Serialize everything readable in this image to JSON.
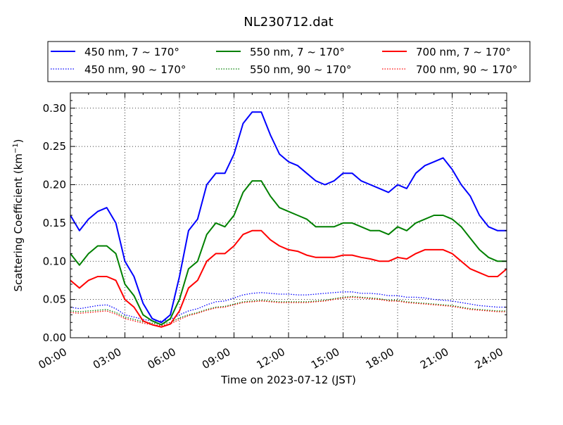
{
  "chart_data": {
    "type": "line",
    "title": "NL230712.dat",
    "xlabel": "Time on 2023-07-12 (JST)",
    "ylabel_main": "Scattering Coefficient (km",
    "ylabel_sup": "−1",
    "ylabel_close": ")",
    "xlim": [
      "00:00",
      "24:00"
    ],
    "ylim": [
      0.0,
      0.32
    ],
    "x_ticks": [
      "00:00",
      "03:00",
      "06:00",
      "09:00",
      "12:00",
      "15:00",
      "18:00",
      "21:00",
      "24:00"
    ],
    "y_ticks": [
      "0.00",
      "0.05",
      "0.10",
      "0.15",
      "0.20",
      "0.25",
      "0.30"
    ],
    "grid": true,
    "legend_position": "top, above plot (3 columns)",
    "x_hours": [
      0,
      0.5,
      1,
      1.5,
      2,
      2.5,
      3,
      3.5,
      4,
      4.5,
      5,
      5.5,
      6,
      6.5,
      7,
      7.5,
      8,
      8.5,
      9,
      9.5,
      10,
      10.5,
      11,
      11.5,
      12,
      12.5,
      13,
      13.5,
      14,
      14.5,
      15,
      15.5,
      16,
      16.5,
      17,
      17.5,
      18,
      18.5,
      19,
      19.5,
      20,
      20.5,
      21,
      21.5,
      22,
      22.5,
      23,
      23.5,
      24
    ],
    "series": [
      {
        "name": "450 nm, 7 ~ 170°",
        "color": "#0000ff",
        "style": "solid",
        "values": [
          0.16,
          0.14,
          0.155,
          0.165,
          0.17,
          0.15,
          0.1,
          0.08,
          0.045,
          0.025,
          0.02,
          0.03,
          0.08,
          0.14,
          0.155,
          0.2,
          0.215,
          0.215,
          0.24,
          0.28,
          0.295,
          0.295,
          0.265,
          0.24,
          0.23,
          0.225,
          0.215,
          0.205,
          0.2,
          0.205,
          0.215,
          0.215,
          0.205,
          0.2,
          0.195,
          0.19,
          0.2,
          0.195,
          0.215,
          0.225,
          0.23,
          0.235,
          0.22,
          0.2,
          0.185,
          0.16,
          0.145,
          0.14,
          0.14
        ]
      },
      {
        "name": "550 nm, 7 ~ 170°",
        "color": "#008000",
        "style": "solid",
        "values": [
          0.11,
          0.095,
          0.11,
          0.12,
          0.12,
          0.11,
          0.07,
          0.055,
          0.03,
          0.022,
          0.017,
          0.025,
          0.05,
          0.09,
          0.1,
          0.135,
          0.15,
          0.145,
          0.16,
          0.19,
          0.205,
          0.205,
          0.185,
          0.17,
          0.165,
          0.16,
          0.155,
          0.145,
          0.145,
          0.145,
          0.15,
          0.15,
          0.145,
          0.14,
          0.14,
          0.135,
          0.145,
          0.14,
          0.15,
          0.155,
          0.16,
          0.16,
          0.155,
          0.145,
          0.13,
          0.115,
          0.105,
          0.1,
          0.1
        ]
      },
      {
        "name": "700 nm, 7 ~ 170°",
        "color": "#ff0000",
        "style": "solid",
        "values": [
          0.075,
          0.065,
          0.075,
          0.08,
          0.08,
          0.075,
          0.05,
          0.04,
          0.022,
          0.017,
          0.014,
          0.018,
          0.035,
          0.065,
          0.075,
          0.1,
          0.11,
          0.11,
          0.12,
          0.135,
          0.14,
          0.14,
          0.128,
          0.12,
          0.115,
          0.113,
          0.108,
          0.105,
          0.105,
          0.105,
          0.108,
          0.108,
          0.105,
          0.103,
          0.1,
          0.1,
          0.105,
          0.103,
          0.11,
          0.115,
          0.115,
          0.115,
          0.11,
          0.1,
          0.09,
          0.085,
          0.08,
          0.08,
          0.09
        ]
      },
      {
        "name": "450 nm, 90 ~ 170°",
        "color": "#0000ff",
        "style": "dotted",
        "values": [
          0.04,
          0.038,
          0.04,
          0.042,
          0.043,
          0.038,
          0.03,
          0.027,
          0.024,
          0.022,
          0.022,
          0.024,
          0.03,
          0.035,
          0.038,
          0.043,
          0.047,
          0.048,
          0.052,
          0.056,
          0.058,
          0.059,
          0.058,
          0.057,
          0.057,
          0.056,
          0.056,
          0.057,
          0.058,
          0.059,
          0.06,
          0.06,
          0.058,
          0.058,
          0.057,
          0.055,
          0.055,
          0.053,
          0.053,
          0.052,
          0.05,
          0.049,
          0.048,
          0.046,
          0.044,
          0.042,
          0.041,
          0.04,
          0.04
        ]
      },
      {
        "name": "550 nm, 90 ~ 170°",
        "color": "#008000",
        "style": "dotted",
        "values": [
          0.035,
          0.034,
          0.035,
          0.036,
          0.037,
          0.033,
          0.027,
          0.024,
          0.021,
          0.019,
          0.018,
          0.02,
          0.026,
          0.03,
          0.033,
          0.037,
          0.04,
          0.041,
          0.044,
          0.047,
          0.048,
          0.049,
          0.048,
          0.047,
          0.047,
          0.047,
          0.047,
          0.048,
          0.049,
          0.051,
          0.053,
          0.054,
          0.053,
          0.052,
          0.051,
          0.049,
          0.049,
          0.047,
          0.046,
          0.045,
          0.044,
          0.043,
          0.042,
          0.04,
          0.038,
          0.037,
          0.036,
          0.035,
          0.035
        ]
      },
      {
        "name": "700 nm, 90 ~ 170°",
        "color": "#ff0000",
        "style": "dotted",
        "values": [
          0.033,
          0.032,
          0.033,
          0.034,
          0.035,
          0.031,
          0.025,
          0.022,
          0.019,
          0.017,
          0.016,
          0.018,
          0.024,
          0.029,
          0.032,
          0.036,
          0.039,
          0.04,
          0.043,
          0.046,
          0.047,
          0.048,
          0.047,
          0.046,
          0.046,
          0.046,
          0.046,
          0.047,
          0.048,
          0.05,
          0.052,
          0.053,
          0.052,
          0.051,
          0.05,
          0.048,
          0.048,
          0.046,
          0.045,
          0.044,
          0.043,
          0.042,
          0.041,
          0.039,
          0.037,
          0.036,
          0.035,
          0.034,
          0.034
        ]
      }
    ]
  }
}
